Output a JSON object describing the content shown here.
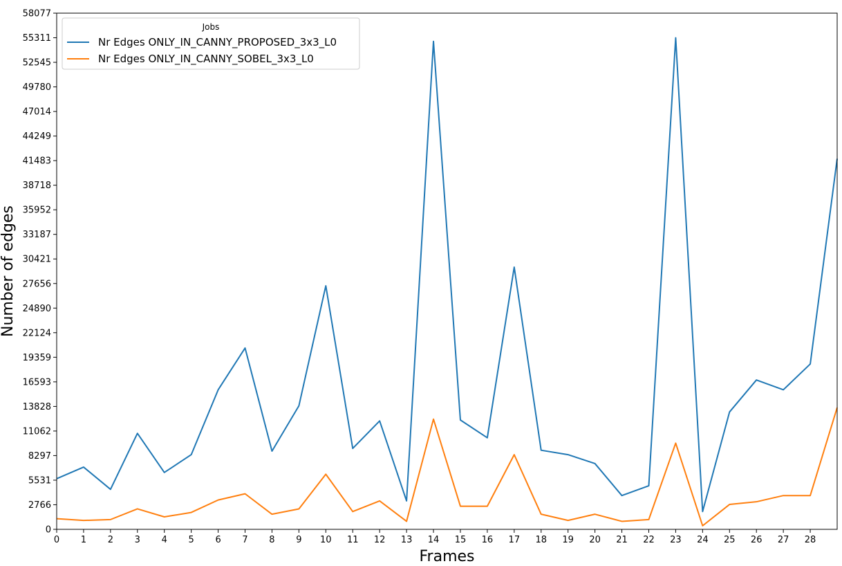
{
  "chart_data": {
    "type": "line",
    "title": "",
    "xlabel": "Frames",
    "ylabel": "Number of edges",
    "x": [
      0,
      1,
      2,
      3,
      4,
      5,
      6,
      7,
      8,
      9,
      10,
      11,
      12,
      13,
      14,
      15,
      16,
      17,
      18,
      19,
      20,
      21,
      22,
      23,
      24,
      25,
      26,
      27,
      28,
      29
    ],
    "xticks": [
      0,
      1,
      2,
      3,
      4,
      5,
      6,
      7,
      8,
      9,
      10,
      11,
      12,
      13,
      14,
      15,
      16,
      17,
      18,
      19,
      20,
      21,
      22,
      23,
      24,
      25,
      26,
      27,
      28
    ],
    "xlim": [
      0,
      29
    ],
    "yticks": [
      0,
      2766,
      5531,
      8297,
      11062,
      13828,
      16593,
      19359,
      22124,
      24890,
      27656,
      30421,
      33187,
      35952,
      38718,
      41483,
      44249,
      47014,
      49780,
      52545,
      55311,
      58077
    ],
    "ylim": [
      0,
      58077
    ],
    "grid": false,
    "legend": {
      "title": "Jobs",
      "placement": "top-left"
    },
    "series": [
      {
        "name": "Nr Edges ONLY_IN_CANNY_PROPOSED_3x3_L0",
        "color": "#1f77b4",
        "values": [
          5700,
          7000,
          4500,
          10800,
          6400,
          8400,
          15700,
          20400,
          8800,
          13900,
          27400,
          9100,
          12200,
          3200,
          54900,
          12300,
          10300,
          29500,
          8900,
          8400,
          7400,
          3800,
          4900,
          55300,
          2000,
          13200,
          16800,
          15700,
          18600,
          41700
        ]
      },
      {
        "name": "Nr Edges ONLY_IN_CANNY_SOBEL_3x3_L0",
        "color": "#ff7f0e",
        "values": [
          1200,
          1000,
          1100,
          2300,
          1400,
          1900,
          3300,
          4000,
          1700,
          2300,
          6200,
          2000,
          3200,
          900,
          12400,
          2600,
          2600,
          8400,
          1700,
          1000,
          1700,
          900,
          1100,
          9700,
          400,
          2800,
          3100,
          3800,
          3800,
          13700
        ]
      }
    ]
  }
}
